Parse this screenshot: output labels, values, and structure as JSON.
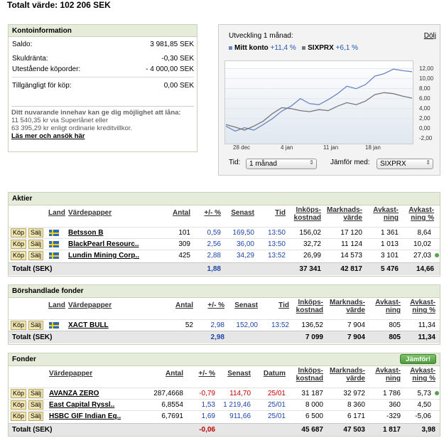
{
  "page_title": "Totalt värde: 102 206 SEK",
  "konto": {
    "title": "Kontoinformation",
    "rows": [
      {
        "label": "Saldo:",
        "value": "3 981,85 SEK"
      },
      {
        "label": "Skuldränta:",
        "value": "-0,30 SEK"
      },
      {
        "label": "Utestående köporder:",
        "value": "- 4 000,00 SEK"
      },
      {
        "label": "Tillgängligt för köp:",
        "value": "0,00 SEK"
      }
    ],
    "note_line1": "Ditt nuvarande innehav kan ge dig möjlighet att låna:",
    "note_line2": "11 540,35 kr via Superlånet eller",
    "note_line3": "63 395,29 kr enligt ordinarie kreditvillkor.",
    "note_link": "Läs mer och ansök här"
  },
  "chart_panel": {
    "title": "Utveckling 1 månad:",
    "hide_link": "Dölj",
    "legend": [
      {
        "name": "Mitt konto",
        "pct": "+11,4 %",
        "color": "#6b86c2"
      },
      {
        "name": "SIXPRX",
        "pct": "+6,1 %",
        "color": "#777777"
      }
    ],
    "tid_label": "Tid:",
    "tid_value": "1 månad",
    "compare_label": "Jämför med:",
    "compare_value": "SIXPRX"
  },
  "chart_data": {
    "type": "line",
    "x_ticks": [
      "28 dec",
      "4 jan",
      "11 jan",
      "18 jan"
    ],
    "y_ticks": [
      "12,00",
      "10,00",
      "8,00",
      "6,00",
      "4,00",
      "2,00",
      "0,00",
      "-2,00"
    ],
    "ylim": [
      -3,
      13.5
    ],
    "series": [
      {
        "name": "Mitt konto",
        "color": "#6b86c2",
        "values": [
          0.5,
          -0.5,
          0.2,
          -0.3,
          0.8,
          2.0,
          3.5,
          4.5,
          6.0,
          5.0,
          4.8,
          5.8,
          7.0,
          8.5,
          8.0,
          8.8,
          10.5,
          11.0,
          11.9,
          11.6,
          11.4
        ]
      },
      {
        "name": "SIXPRX",
        "color": "#777777",
        "values": [
          0.8,
          0.3,
          -0.3,
          0.5,
          1.5,
          3.0,
          4.2,
          4.0,
          3.6,
          3.4,
          3.8,
          3.6,
          4.5,
          5.2,
          4.8,
          5.5,
          6.8,
          7.2,
          7.0,
          6.5,
          6.1
        ]
      }
    ]
  },
  "aktier": {
    "title": "Aktier",
    "cols": {
      "land": "Land",
      "vp": "Värdepapper",
      "antal": "Antal",
      "pct": "+/- %",
      "senast": "Senast",
      "tid": "Tid",
      "ink1": "Inköps-",
      "ink2": "kostnad",
      "mv1": "Marknads-",
      "mv2": "värde",
      "av1": "Avkast-",
      "av2": "ning",
      "avp1": "Avkast-",
      "avp2": "ning %"
    },
    "buy": "Köp",
    "sell": "Sälj",
    "rows": [
      {
        "name": "Betsson B",
        "antal": "101",
        "pct": "0,59",
        "senast": "169,50",
        "tid": "13:50",
        "ink": "156,02",
        "mv": "17 120",
        "av": "1 361",
        "avp": "8,64"
      },
      {
        "name": "BlackPearl Resourc..",
        "antal": "309",
        "pct": "2,56",
        "senast": "36,00",
        "tid": "13:50",
        "ink": "32,72",
        "mv": "11 124",
        "av": "1 013",
        "avp": "10,02"
      },
      {
        "name": "Lundin Mining Corp..",
        "antal": "425",
        "pct": "2,88",
        "senast": "34,29",
        "tid": "13:52",
        "ink": "26,99",
        "mv": "14 573",
        "av": "3 101",
        "avp": "27,03"
      }
    ],
    "total": {
      "label": "Totalt (SEK)",
      "pct": "1,88",
      "ink": "37 341",
      "mv": "42 817",
      "av": "5 476",
      "avp": "14,66"
    }
  },
  "fonder_bors": {
    "title": "Börshandlade fonder",
    "rows": [
      {
        "name": "XACT BULL",
        "antal": "52",
        "pct": "2,98",
        "senast": "152,00",
        "tid": "13:52",
        "ink": "136,52",
        "mv": "7 904",
        "av": "805",
        "avp": "11,34"
      }
    ],
    "total": {
      "label": "Totalt (SEK)",
      "pct": "2,98",
      "ink": "7 099",
      "mv": "7 904",
      "av": "805",
      "avp": "11,34"
    }
  },
  "fonder": {
    "title": "Fonder",
    "compare_btn": "Jämför!",
    "datum": "Datum",
    "rows": [
      {
        "name": "AVANZA ZERO",
        "antal": "287,4668",
        "pct": "-0,79",
        "senast": "114,70",
        "datum": "25/01",
        "ink": "31 187",
        "mv": "32 972",
        "av": "1 786",
        "avp": "5,73"
      },
      {
        "name": "East Capital Ryssl..",
        "antal": "6,8554",
        "pct": "1,53",
        "senast": "1 219,46",
        "datum": "25/01",
        "ink": "8 000",
        "mv": "8 360",
        "av": "360",
        "avp": "4,50"
      },
      {
        "name": "HSBC GIF Indian Eq..",
        "antal": "6,7691",
        "pct": "1,69",
        "senast": "911,66",
        "datum": "25/01",
        "ink": "6 500",
        "mv": "6 171",
        "av": "-329",
        "avp": "-5,06"
      }
    ],
    "total": {
      "label": "Totalt (SEK)",
      "pct": "-0,06",
      "ink": "45 687",
      "mv": "47 503",
      "av": "1 817",
      "avp": "3,98"
    }
  }
}
